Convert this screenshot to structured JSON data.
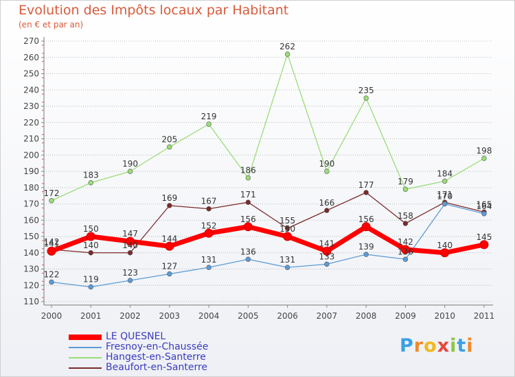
{
  "chart_data": {
    "type": "line",
    "title": "Evolution des Impôts locaux par Habitant",
    "subtitle": "(en € et par an)",
    "xlabel": "",
    "ylabel": "",
    "x": [
      "2000",
      "2001",
      "2002",
      "2003",
      "2004",
      "2005",
      "2006",
      "2007",
      "2008",
      "2009",
      "2010",
      "2011"
    ],
    "ylim": [
      110,
      270
    ],
    "yticks": [
      110,
      120,
      130,
      140,
      150,
      160,
      170,
      180,
      190,
      200,
      210,
      220,
      230,
      240,
      250,
      260,
      270
    ],
    "grid": "horizontal dotted",
    "legend_position": "bottom-left",
    "series": [
      {
        "name": "LE QUESNEL",
        "color": "#ff0000",
        "values": [
          141,
          150,
          147,
          144,
          152,
          156,
          150,
          141,
          156,
          142,
          140,
          145
        ]
      },
      {
        "name": "Fresnoy-en-Chaussée",
        "color": "#5b9bd5",
        "values": [
          122,
          119,
          123,
          127,
          131,
          136,
          131,
          133,
          139,
          136,
          170,
          164
        ]
      },
      {
        "name": "Hangest-en-Santerre",
        "color": "#99dd77",
        "values": [
          172,
          183,
          190,
          205,
          219,
          186,
          262,
          190,
          235,
          179,
          184,
          198
        ]
      },
      {
        "name": "Beaufort-en-Santerre",
        "color": "#7a2a2a",
        "values": [
          142,
          140,
          140,
          169,
          167,
          171,
          155,
          166,
          177,
          158,
          171,
          165
        ]
      }
    ]
  },
  "logo": {
    "letters": [
      "P",
      "r",
      "o",
      "x",
      "i",
      "t",
      "i"
    ],
    "colors": [
      "#3aa0e8",
      "#f08a2a",
      "#f0b81e",
      "#e8463c",
      "#8cc83c",
      "#3aa0e8",
      "#f08a2a"
    ]
  }
}
